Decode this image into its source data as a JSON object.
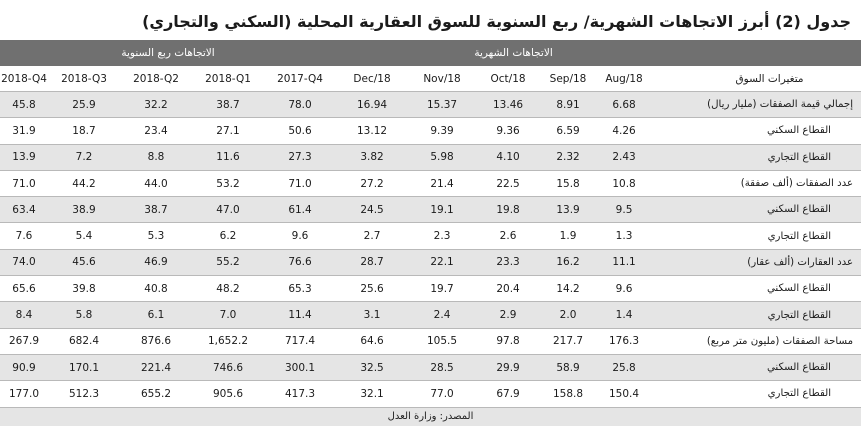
{
  "title": "جدول (2) أبرز الاتجاهات الشهرية/ ربع السنوية للسوق العقارية المحلية (السكني والتجاري)",
  "group_headers": {
    "quarterly": "الاتجاهات ربع السنوية",
    "monthly": "الاتجاهات الشهرية"
  },
  "columns": [
    "2018-Q4",
    "2018-Q3",
    "2018-Q2",
    "2018-Q1",
    "2017-Q4",
    "Dec/18",
    "Nov/18",
    "Oct/18",
    "Sep/18",
    "Aug/18"
  ],
  "label_header": "متغيرات السوق",
  "rows": [
    {
      "label": "إجمالي قيمة الصفقات (مليار ريال)",
      "sub": false,
      "values": [
        "45.8",
        "25.9",
        "32.2",
        "38.7",
        "78.0",
        "16.94",
        "15.37",
        "13.46",
        "8.91",
        "6.68"
      ]
    },
    {
      "label": "القطاع السكني",
      "sub": true,
      "values": [
        "31.9",
        "18.7",
        "23.4",
        "27.1",
        "50.6",
        "13.12",
        "9.39",
        "9.36",
        "6.59",
        "4.26"
      ]
    },
    {
      "label": "القطاع التجاري",
      "sub": true,
      "values": [
        "13.9",
        "7.2",
        "8.8",
        "11.6",
        "27.3",
        "3.82",
        "5.98",
        "4.10",
        "2.32",
        "2.43"
      ]
    },
    {
      "label": "عدد الصفقات (ألف صفقة)",
      "sub": false,
      "values": [
        "71.0",
        "44.2",
        "44.0",
        "53.2",
        "71.0",
        "27.2",
        "21.4",
        "22.5",
        "15.8",
        "10.8"
      ]
    },
    {
      "label": "القطاع السكني",
      "sub": true,
      "values": [
        "63.4",
        "38.9",
        "38.7",
        "47.0",
        "61.4",
        "24.5",
        "19.1",
        "19.8",
        "13.9",
        "9.5"
      ]
    },
    {
      "label": "القطاع التجاري",
      "sub": true,
      "values": [
        "7.6",
        "5.4",
        "5.3",
        "6.2",
        "9.6",
        "2.7",
        "2.3",
        "2.6",
        "1.9",
        "1.3"
      ]
    },
    {
      "label": "عدد العقارات (ألف عقار)",
      "sub": false,
      "values": [
        "74.0",
        "45.6",
        "46.9",
        "55.2",
        "76.6",
        "28.7",
        "22.1",
        "23.3",
        "16.2",
        "11.1"
      ]
    },
    {
      "label": "القطاع السكني",
      "sub": true,
      "values": [
        "65.6",
        "39.8",
        "40.8",
        "48.2",
        "65.3",
        "25.6",
        "19.7",
        "20.4",
        "14.2",
        "9.6"
      ]
    },
    {
      "label": "القطاع التجاري",
      "sub": true,
      "values": [
        "8.4",
        "5.8",
        "6.1",
        "7.0",
        "11.4",
        "3.1",
        "2.4",
        "2.9",
        "2.0",
        "1.4"
      ]
    },
    {
      "label": "مساحة الصفقات (مليون متر مربع)",
      "sub": false,
      "values": [
        "267.9",
        "682.4",
        "876.6",
        "1,652.2",
        "717.4",
        "64.6",
        "105.5",
        "97.8",
        "217.7",
        "176.3"
      ]
    },
    {
      "label": "القطاع السكني",
      "sub": true,
      "values": [
        "90.9",
        "170.1",
        "221.4",
        "746.6",
        "300.1",
        "32.5",
        "28.5",
        "29.9",
        "58.9",
        "25.8"
      ]
    },
    {
      "label": "القطاع التجاري",
      "sub": true,
      "values": [
        "177.0",
        "512.3",
        "655.2",
        "905.6",
        "417.3",
        "32.1",
        "77.0",
        "67.9",
        "158.8",
        "150.4"
      ]
    }
  ],
  "source": "المصدر: وزارة العدل"
}
